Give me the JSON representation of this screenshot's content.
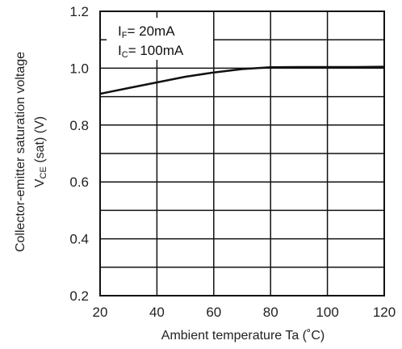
{
  "chart_data": {
    "type": "line",
    "title": "",
    "xlabel": "Ambient temperature Ta (˚C)",
    "ylabel_line1": "Collector-emitter saturation voltage",
    "ylabel_line2": {
      "main": "V",
      "sub": "CE",
      "rest": " (sat) (V)"
    },
    "xlim": [
      20,
      120
    ],
    "ylim": [
      0.2,
      1.2
    ],
    "x_ticks": [
      "20",
      "40",
      "60",
      "80",
      "100",
      "120"
    ],
    "y_ticks": [
      "0.2",
      "0.4",
      "0.6",
      "0.8",
      "1.0",
      "1.2"
    ],
    "grid": true,
    "conditions": [
      {
        "main": "I",
        "sub": "F",
        "rest": "= 20mA"
      },
      {
        "main": "I",
        "sub": "C",
        "rest": "= 100mA"
      }
    ],
    "series": [
      {
        "x": [
          20,
          30,
          40,
          50,
          60,
          70,
          80,
          90,
          100,
          110,
          120
        ],
        "values": [
          0.91,
          0.93,
          0.95,
          0.97,
          0.985,
          0.997,
          1.003,
          1.004,
          1.004,
          1.004,
          1.005
        ]
      }
    ]
  }
}
